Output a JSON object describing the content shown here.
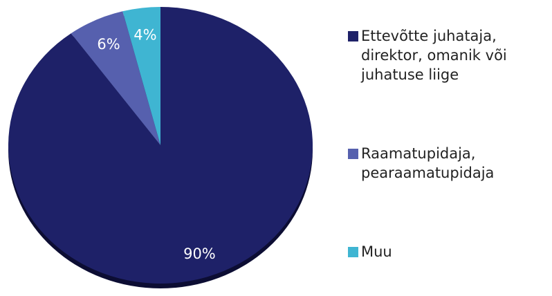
{
  "chart_data": {
    "type": "pie",
    "categories": [
      "Ettevõtte juhataja, direktor, omanik või juhatuse liige",
      "Raamatupidaja, pearaamatupidaja",
      "Muu"
    ],
    "values": [
      90,
      6,
      4
    ],
    "value_labels": [
      "90%",
      "6%",
      "4%"
    ],
    "colors": [
      "#1e2168",
      "#5660ae",
      "#3fb5d2"
    ],
    "legend": "right"
  }
}
